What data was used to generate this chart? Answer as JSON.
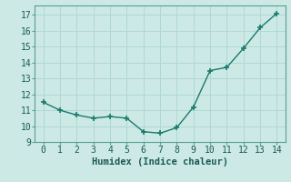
{
  "x": [
    0,
    1,
    2,
    3,
    4,
    5,
    6,
    7,
    8,
    9,
    10,
    11,
    12,
    13,
    14
  ],
  "y": [
    11.5,
    11.0,
    10.7,
    10.5,
    10.6,
    10.5,
    9.65,
    9.55,
    9.9,
    11.2,
    13.5,
    13.7,
    14.9,
    16.2,
    17.1
  ],
  "line_color": "#1a7a6e",
  "marker": "+",
  "marker_size": 4,
  "linewidth": 1.0,
  "xlabel": "Humidex (Indice chaleur)",
  "xlabel_fontsize": 7.5,
  "xlim": [
    -0.5,
    14.5
  ],
  "ylim": [
    9.0,
    17.6
  ],
  "yticks": [
    9,
    10,
    11,
    12,
    13,
    14,
    15,
    16,
    17
  ],
  "xticks": [
    0,
    1,
    2,
    3,
    4,
    5,
    6,
    7,
    8,
    9,
    10,
    11,
    12,
    13,
    14
  ],
  "background_color": "#cce9e5",
  "grid_color": "#b0d8d3",
  "tick_fontsize": 7,
  "spine_color": "#5a9e95"
}
